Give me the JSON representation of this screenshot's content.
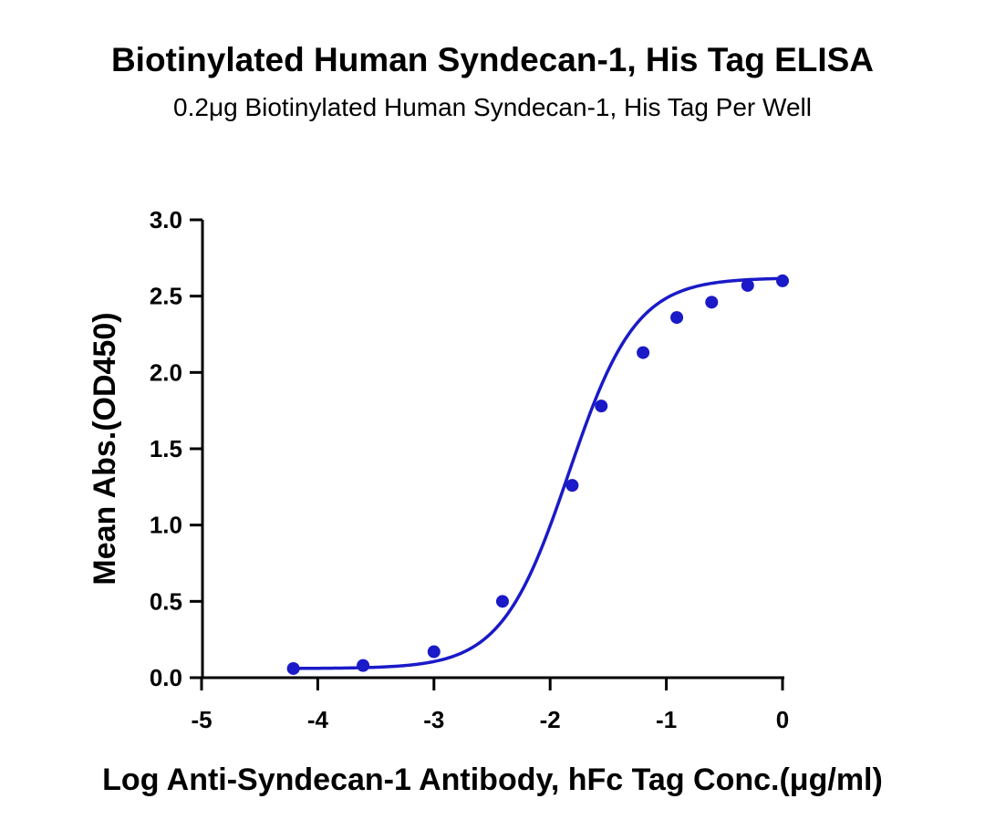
{
  "chart_data": {
    "type": "scatter",
    "title": "Biotinylated Human Syndecan-1, His Tag ELISA",
    "subtitle": "0.2μg Biotinylated Human Syndecan-1, His Tag Per Well",
    "xlabel": "Log Anti-Syndecan-1 Antibody, hFc Tag Conc.(μg/ml)",
    "ylabel": "Mean Abs.(OD450)",
    "xlim": [
      -5,
      0
    ],
    "ylim": [
      0,
      3.0
    ],
    "x_ticks": [
      -5,
      -4,
      -3,
      -2,
      -1,
      0
    ],
    "x_tick_labels": [
      "-5",
      "-4",
      "-3",
      "-2",
      "-1",
      "0"
    ],
    "y_ticks": [
      0,
      0.5,
      1.0,
      1.5,
      2.0,
      2.5,
      3.0
    ],
    "y_tick_labels": [
      "0.0",
      "0.5",
      "1.0",
      "1.5",
      "2.0",
      "2.5",
      "3.0"
    ],
    "grid": false,
    "series_color": "#1a1ac8",
    "fit": "4PL sigmoid",
    "series": [
      {
        "x": [
          -4.21,
          -3.61,
          -3.0,
          -2.41,
          -1.81,
          -1.56,
          -1.2,
          -0.91,
          -0.61,
          -0.3,
          0.0
        ],
        "values": [
          0.06,
          0.08,
          0.17,
          0.5,
          1.26,
          1.78,
          2.13,
          2.36,
          2.46,
          2.57,
          2.6
        ]
      }
    ]
  }
}
